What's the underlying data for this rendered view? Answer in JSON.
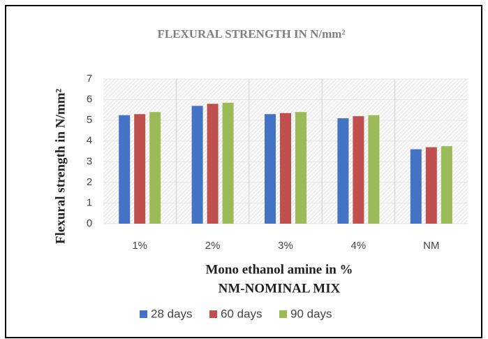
{
  "chart_data": {
    "type": "bar",
    "title": "FLEXURAL STRENGTH IN N/mm²",
    "ylabel": "Flexural strength in N/mm²",
    "xlabel": "Mono ethanol amine  in %",
    "annotation": "NM-NOMINAL  MIX",
    "categories": [
      "1%",
      "2%",
      "3%",
      "4%",
      "NM"
    ],
    "series": [
      {
        "name": "28 days",
        "color": "#4472c4",
        "values": [
          5.25,
          5.7,
          5.3,
          5.1,
          3.6
        ]
      },
      {
        "name": "60 days",
        "color": "#c0504d",
        "values": [
          5.3,
          5.8,
          5.35,
          5.2,
          3.7
        ]
      },
      {
        "name": "90 days",
        "color": "#9bbb59",
        "values": [
          5.4,
          5.85,
          5.4,
          5.25,
          3.75
        ]
      }
    ],
    "ylim": [
      0,
      7
    ],
    "yticks": [
      0,
      1,
      2,
      3,
      4,
      5,
      6,
      7
    ],
    "grid": true,
    "legend": "bottom"
  }
}
